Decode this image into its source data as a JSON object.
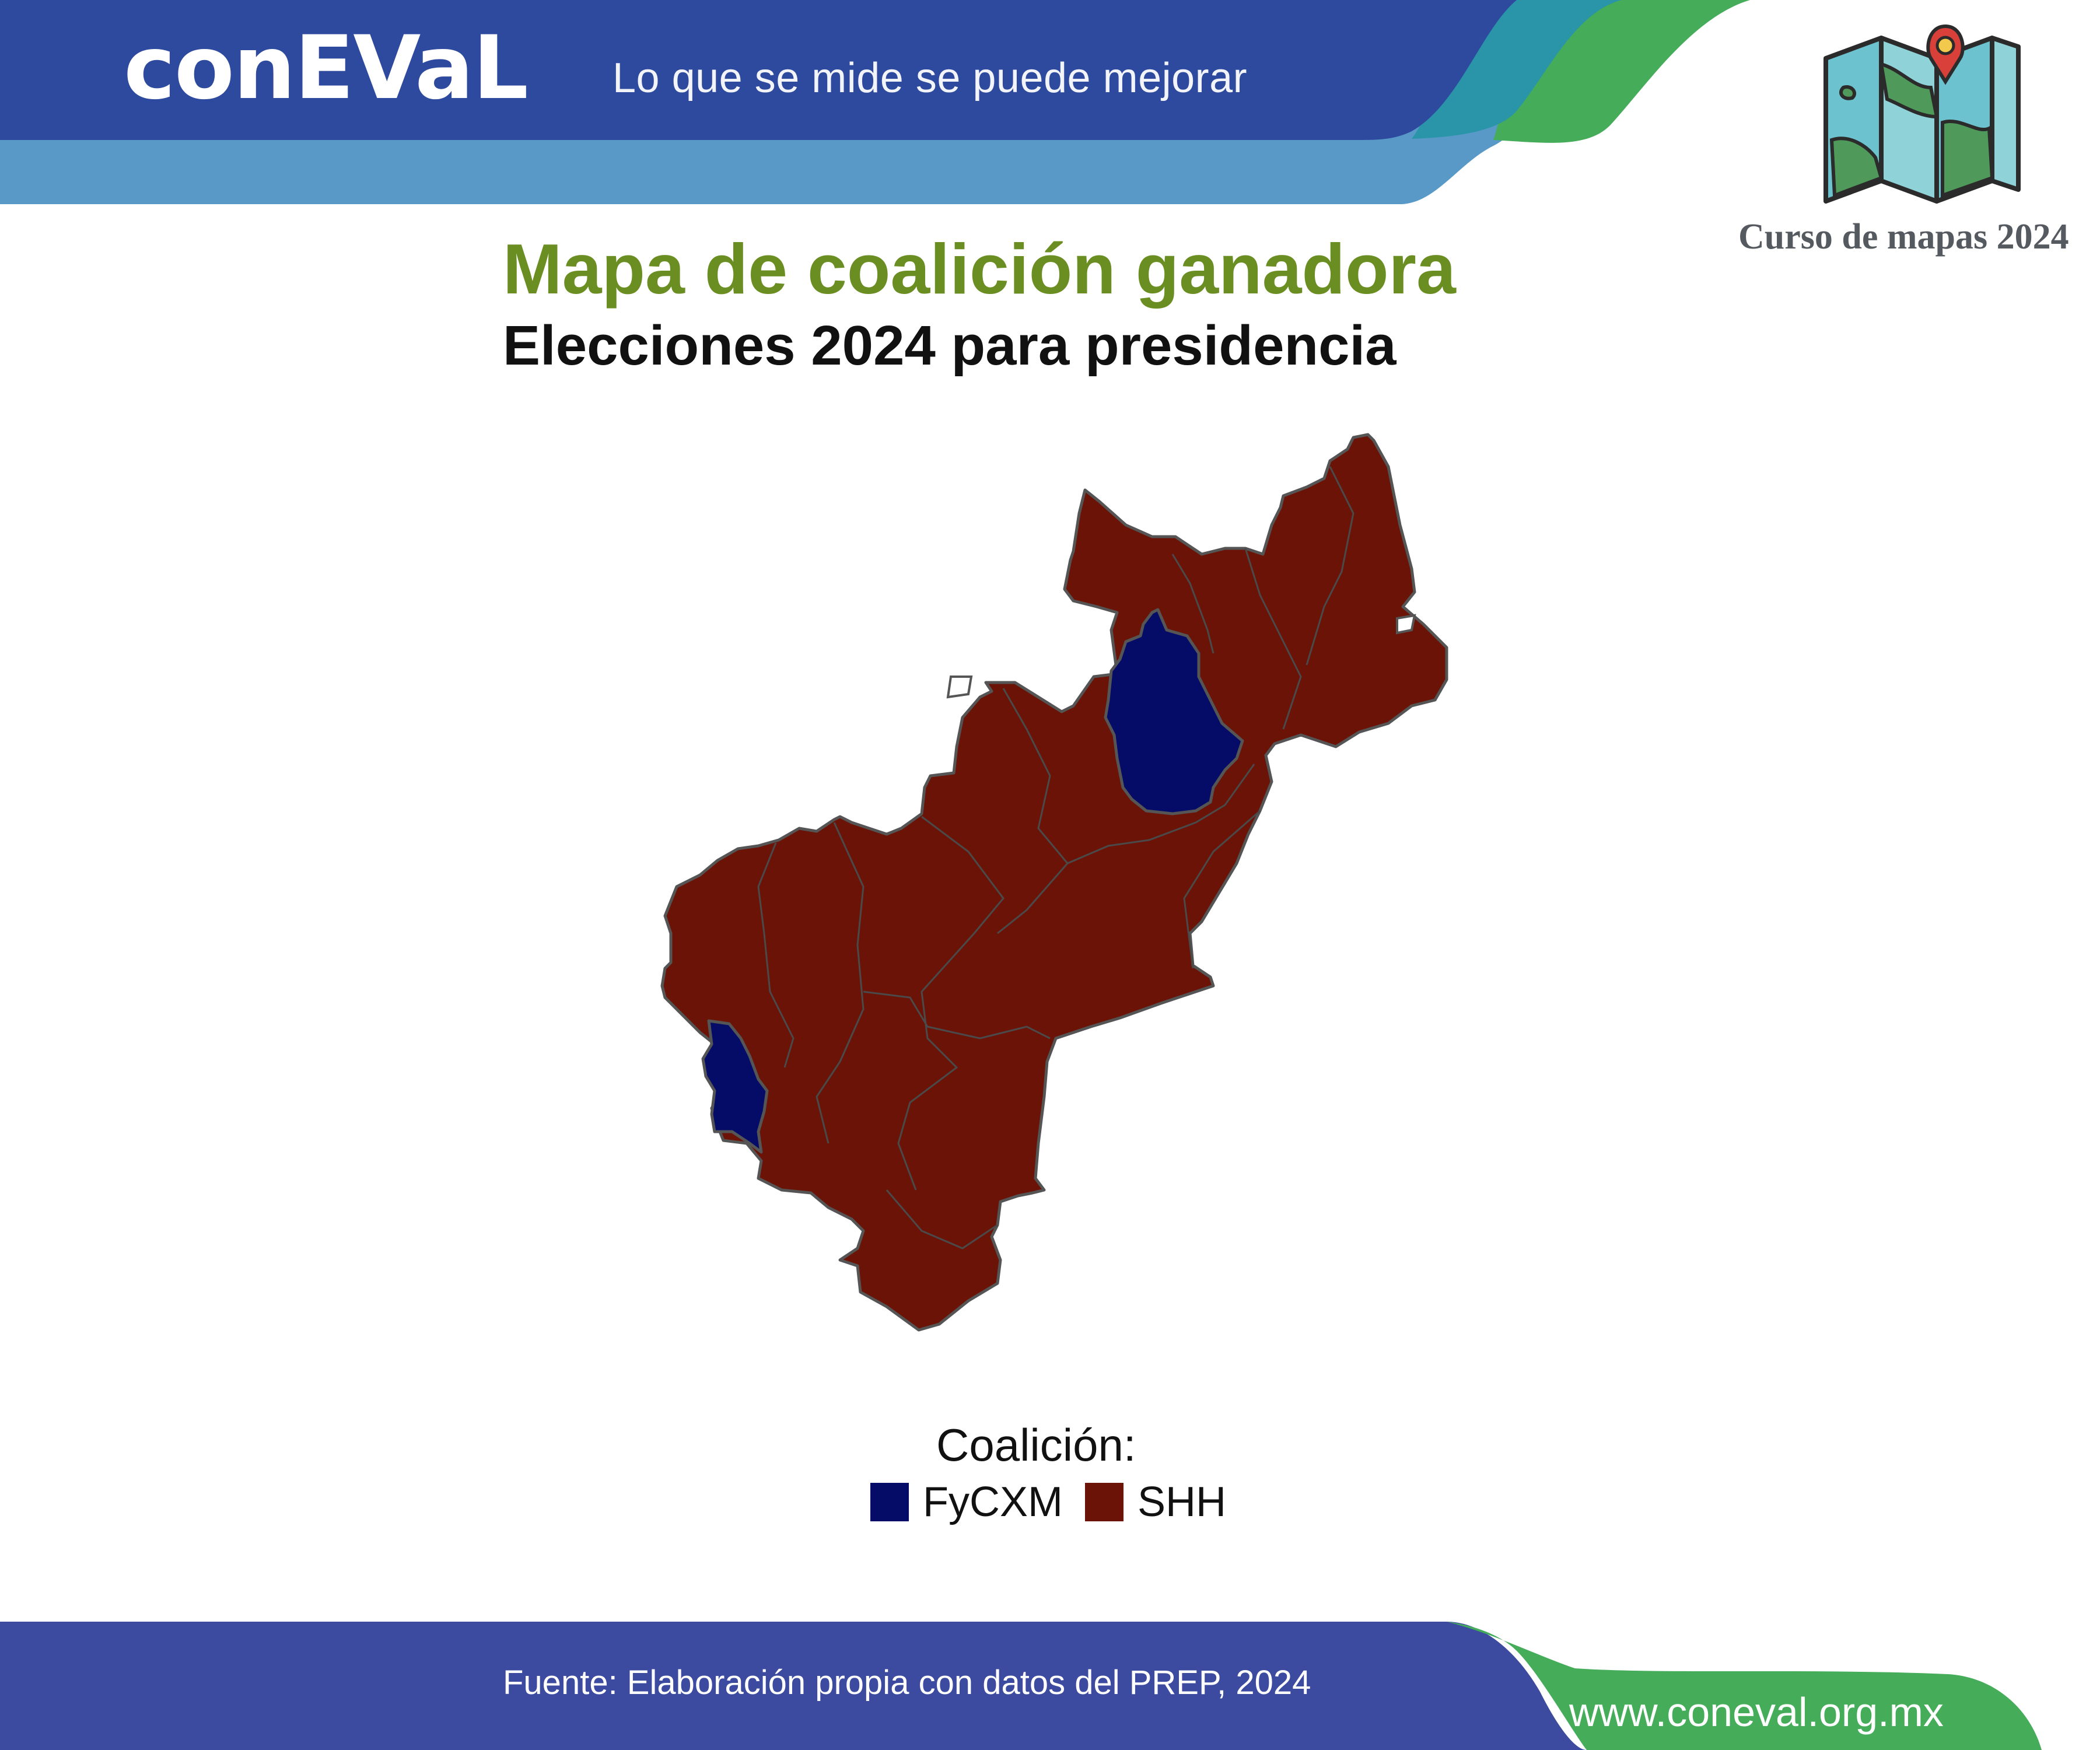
{
  "header": {
    "logo_text": "conEVaL",
    "tagline": "Lo que se mide se puede mejorar",
    "course_label": "Curso de mapas 2024",
    "colors": {
      "navy": "#2e4a9e",
      "lightblue": "#5899c8",
      "teal": "#2a94a8",
      "green": "#45ac5a"
    },
    "icon": "folded-map-icon"
  },
  "map": {
    "title": "Mapa de coalición ganadora",
    "subtitle": "Elecciones 2024 para presidencia",
    "legend": {
      "title": "Coalición:",
      "items": [
        {
          "label": "FyCXM",
          "color": "#050c68"
        },
        {
          "label": "SHH",
          "color": "#6b1306"
        }
      ]
    },
    "region_border_color": "#555555"
  },
  "footer": {
    "source": "Fuente: Elaboración propia con datos del PREP, 2024",
    "website": "www.coneval.org.mx",
    "colors": {
      "blue": "#3c4aa0",
      "green": "#45ac5a"
    }
  }
}
